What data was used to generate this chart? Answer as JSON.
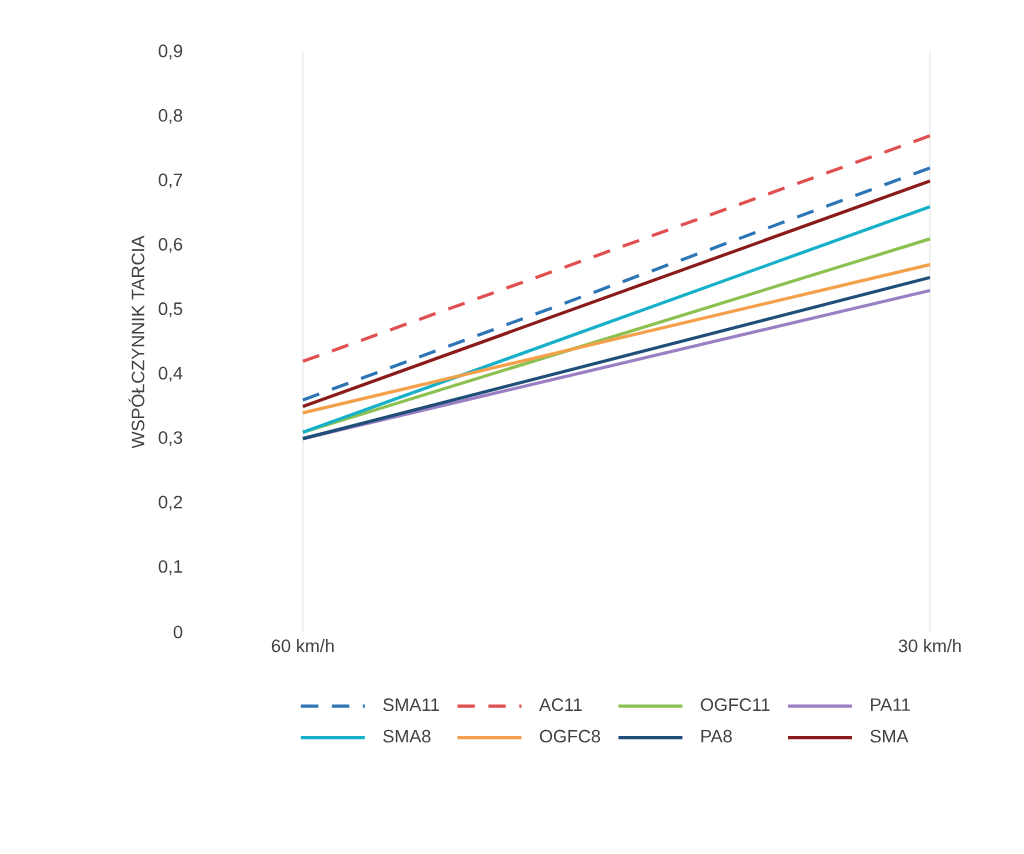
{
  "chart_data": {
    "type": "line",
    "ylabel": "WSPÓŁCZYNNIK TARCIA",
    "categories": [
      "60 km/h",
      "30 km/h"
    ],
    "ylim": [
      0,
      0.9
    ],
    "yticks": [
      {
        "value": 0,
        "label": "0"
      },
      {
        "value": 0.1,
        "label": "0,1"
      },
      {
        "value": 0.2,
        "label": "0,2"
      },
      {
        "value": 0.3,
        "label": "0,3"
      },
      {
        "value": 0.4,
        "label": "0,4"
      },
      {
        "value": 0.5,
        "label": "0,5"
      },
      {
        "value": 0.6,
        "label": "0,6"
      },
      {
        "value": 0.7,
        "label": "0,7"
      },
      {
        "value": 0.8,
        "label": "0,8"
      },
      {
        "value": 0.9,
        "label": "0,9"
      }
    ],
    "grid": "x",
    "legend": "bottom",
    "marker": "none",
    "series": [
      {
        "name": "SMA11",
        "color": "#2e75b6",
        "line_style": "dashed",
        "values": [
          0.36,
          0.72
        ]
      },
      {
        "name": "AC11",
        "color": "#e05050",
        "line_style": "dashed",
        "values": [
          0.42,
          0.77
        ]
      },
      {
        "name": "OGFC11",
        "color": "#8cc152",
        "values": [
          0.31,
          0.61
        ]
      },
      {
        "name": "PA11",
        "color": "#9b7fc4",
        "values": [
          0.3,
          0.53
        ]
      },
      {
        "name": "SMA8",
        "color": "#17b0c9",
        "values": [
          0.31,
          0.66
        ]
      },
      {
        "name": "OGFC8",
        "color": "#f4a04a",
        "values": [
          0.34,
          0.57
        ]
      },
      {
        "name": "PA8",
        "color": "#1f4e79",
        "values": [
          0.3,
          0.55
        ]
      },
      {
        "name": "SMA",
        "color": "#8b1a1a",
        "values": [
          0.35,
          0.7
        ]
      }
    ]
  }
}
